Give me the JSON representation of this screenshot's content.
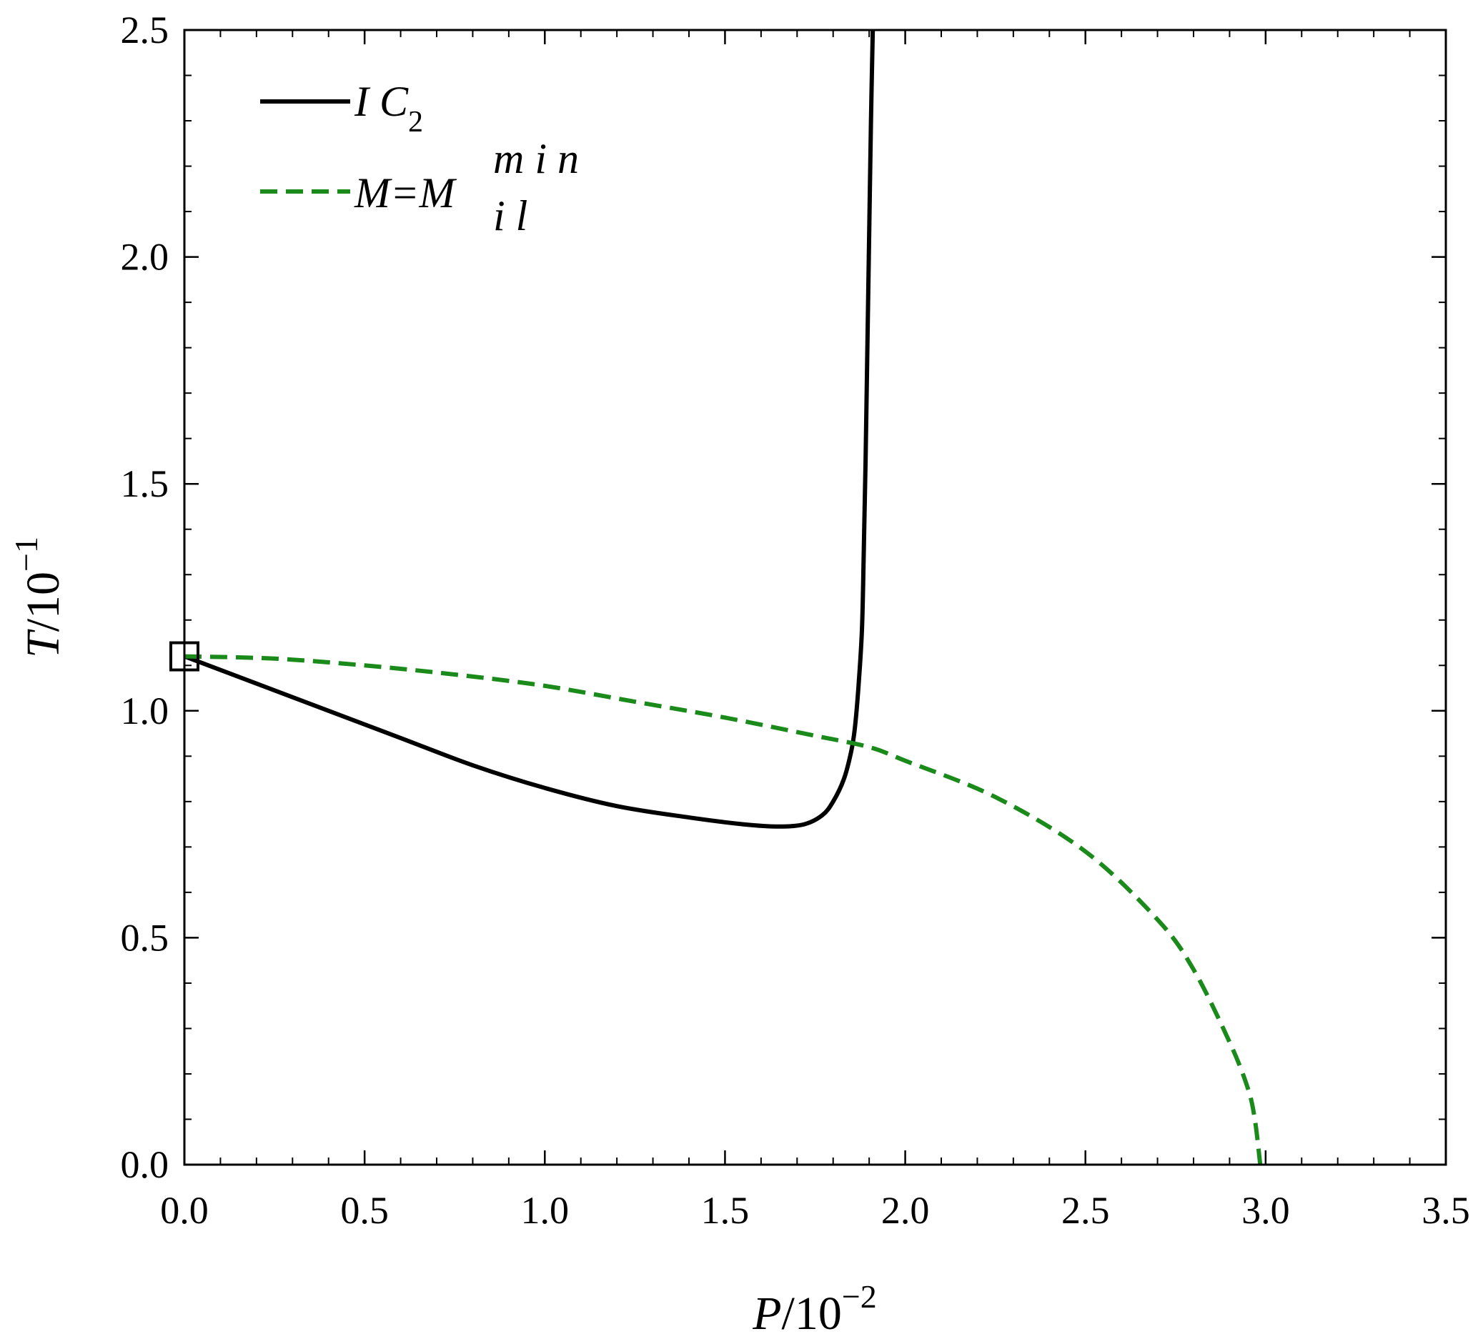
{
  "chart_data": {
    "type": "line",
    "xlabel": {
      "var": "P",
      "sep": "/10",
      "exp": "−2"
    },
    "ylabel": {
      "var": "T",
      "sep": "/10",
      "exp": "−1"
    },
    "xlim": [
      0,
      3.5
    ],
    "ylim": [
      0,
      2.5
    ],
    "x_major_ticks": [
      0.0,
      0.5,
      1.0,
      1.5,
      2.0,
      2.5,
      3.0,
      3.5
    ],
    "x_tick_labels": [
      "0.0",
      "0.5",
      "1.0",
      "1.5",
      "2.0",
      "2.5",
      "3.0",
      "3.5"
    ],
    "y_major_ticks": [
      0.0,
      0.5,
      1.0,
      1.5,
      2.0,
      2.5
    ],
    "y_tick_labels": [
      "0.0",
      "0.5",
      "1.0",
      "1.5",
      "2.0",
      "2.5"
    ],
    "minor_step_x": 0.1,
    "minor_step_y": 0.1,
    "grid": false,
    "legend_position": "top-left",
    "colors": {
      "ic2": "#000000",
      "mmin": "#1a8a1a"
    },
    "legend": {
      "ic2": {
        "main": "I C",
        "sub": "2"
      },
      "mmin": {
        "main": "M=M",
        "sup": "m i n",
        "sub": "i l"
      }
    },
    "marker": {
      "shape": "square",
      "x": 0.0,
      "y": 1.12
    },
    "series": [
      {
        "key": "ic2",
        "style": "solid",
        "x": [
          0.0,
          0.2,
          0.4,
          0.6,
          0.8,
          1.0,
          1.2,
          1.4,
          1.55,
          1.65,
          1.72,
          1.77,
          1.8,
          1.83,
          1.85,
          1.86,
          1.87,
          1.88,
          1.885,
          1.89,
          1.895,
          1.9,
          1.905,
          1.91
        ],
        "y": [
          1.12,
          1.06,
          1.0,
          0.94,
          0.88,
          0.83,
          0.79,
          0.765,
          0.75,
          0.745,
          0.75,
          0.77,
          0.8,
          0.85,
          0.91,
          0.96,
          1.05,
          1.18,
          1.35,
          1.55,
          1.8,
          2.05,
          2.3,
          2.5
        ]
      },
      {
        "key": "mmin",
        "style": "dashed",
        "x": [
          0.0,
          0.25,
          0.5,
          0.75,
          1.0,
          1.25,
          1.5,
          1.75,
          1.9,
          2.0,
          2.25,
          2.5,
          2.7,
          2.8,
          2.9,
          2.95,
          2.97,
          2.985
        ],
        "y": [
          1.12,
          1.115,
          1.1,
          1.08,
          1.055,
          1.02,
          0.985,
          0.945,
          0.92,
          0.89,
          0.81,
          0.69,
          0.54,
          0.43,
          0.27,
          0.17,
          0.1,
          0.0
        ]
      }
    ]
  }
}
